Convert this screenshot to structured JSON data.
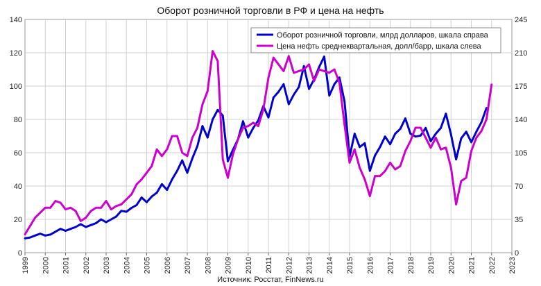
{
  "chart_data": {
    "type": "line",
    "title": "Оборот розничной торговли в РФ и цена на нефть",
    "source": "Источник: Росстат, FinNews.ru",
    "left_axis": {
      "min": 0,
      "max": 140,
      "ticks": [
        "0",
        "20",
        "40",
        "60",
        "80",
        "100",
        "120",
        "140"
      ]
    },
    "right_axis": {
      "min": 0,
      "max": 245,
      "ticks": [
        "0",
        "35",
        "70",
        "105",
        "140",
        "175",
        "210",
        "245"
      ]
    },
    "x_axis": {
      "min": 1999,
      "max": 2023,
      "ticks": [
        "1999",
        "2000",
        "2001",
        "2002",
        "2003",
        "2004",
        "2005",
        "2006",
        "2007",
        "2008",
        "2009",
        "2010",
        "2011",
        "2012",
        "2013",
        "2014",
        "2015",
        "2016",
        "2017",
        "2018",
        "2019",
        "2020",
        "2021",
        "2022",
        "2023"
      ]
    },
    "grid": true,
    "legend_position": "top-right",
    "series": [
      {
        "name": "Оборот розничной торговли, млрд долларов, шкала справа",
        "color": "#0000cc",
        "axis": "right",
        "points": [
          [
            1999.0,
            15
          ],
          [
            1999.25,
            16
          ],
          [
            1999.5,
            18
          ],
          [
            1999.75,
            20
          ],
          [
            2000.0,
            18
          ],
          [
            2000.25,
            19
          ],
          [
            2000.5,
            22
          ],
          [
            2000.75,
            25
          ],
          [
            2001.0,
            23
          ],
          [
            2001.25,
            25
          ],
          [
            2001.5,
            27
          ],
          [
            2001.75,
            30
          ],
          [
            2002.0,
            27
          ],
          [
            2002.25,
            29
          ],
          [
            2002.5,
            31
          ],
          [
            2002.75,
            35
          ],
          [
            2003.0,
            32
          ],
          [
            2003.25,
            35
          ],
          [
            2003.5,
            38
          ],
          [
            2003.75,
            44
          ],
          [
            2004.0,
            43
          ],
          [
            2004.25,
            47
          ],
          [
            2004.5,
            50
          ],
          [
            2004.75,
            58
          ],
          [
            2005.0,
            53
          ],
          [
            2005.25,
            59
          ],
          [
            2005.5,
            63
          ],
          [
            2005.75,
            72
          ],
          [
            2006.0,
            66
          ],
          [
            2006.25,
            77
          ],
          [
            2006.5,
            86
          ],
          [
            2006.75,
            97
          ],
          [
            2007.0,
            84
          ],
          [
            2007.25,
            99
          ],
          [
            2007.5,
            112
          ],
          [
            2007.75,
            133
          ],
          [
            2008.0,
            121
          ],
          [
            2008.25,
            140
          ],
          [
            2008.5,
            150
          ],
          [
            2008.75,
            144
          ],
          [
            2009.0,
            96
          ],
          [
            2009.25,
            108
          ],
          [
            2009.5,
            119
          ],
          [
            2009.75,
            138
          ],
          [
            2010.0,
            121
          ],
          [
            2010.25,
            131
          ],
          [
            2010.5,
            139
          ],
          [
            2010.75,
            154
          ],
          [
            2011.0,
            142
          ],
          [
            2011.25,
            163
          ],
          [
            2011.5,
            169
          ],
          [
            2011.75,
            177
          ],
          [
            2012.0,
            156
          ],
          [
            2012.25,
            166
          ],
          [
            2012.5,
            174
          ],
          [
            2012.75,
            196
          ],
          [
            2013.0,
            172
          ],
          [
            2013.25,
            182
          ],
          [
            2013.5,
            195
          ],
          [
            2013.75,
            206
          ],
          [
            2014.0,
            165
          ],
          [
            2014.25,
            177
          ],
          [
            2014.5,
            184
          ],
          [
            2014.75,
            159
          ],
          [
            2015.0,
            101
          ],
          [
            2015.25,
            125
          ],
          [
            2015.5,
            111
          ],
          [
            2015.75,
            115
          ],
          [
            2016.0,
            86
          ],
          [
            2016.25,
            102
          ],
          [
            2016.5,
            111
          ],
          [
            2016.75,
            122
          ],
          [
            2017.0,
            114
          ],
          [
            2017.25,
            125
          ],
          [
            2017.5,
            130
          ],
          [
            2017.75,
            141
          ],
          [
            2018.0,
            125
          ],
          [
            2018.25,
            122
          ],
          [
            2018.5,
            123
          ],
          [
            2018.75,
            131
          ],
          [
            2019.0,
            117
          ],
          [
            2019.25,
            125
          ],
          [
            2019.5,
            131
          ],
          [
            2019.75,
            146
          ],
          [
            2020.0,
            124
          ],
          [
            2020.25,
            98
          ],
          [
            2020.5,
            120
          ],
          [
            2020.75,
            127
          ],
          [
            2021.0,
            116
          ],
          [
            2021.25,
            127
          ],
          [
            2021.5,
            137
          ],
          [
            2021.75,
            152
          ]
        ]
      },
      {
        "name": "Цена нефть среднеквартальная, долл/барр, шкала слева",
        "color": "#cc00cc",
        "axis": "left",
        "points": [
          [
            1999.0,
            11
          ],
          [
            1999.25,
            16
          ],
          [
            1999.5,
            21
          ],
          [
            1999.75,
            24
          ],
          [
            2000.0,
            27
          ],
          [
            2000.25,
            27
          ],
          [
            2000.5,
            31
          ],
          [
            2000.75,
            30
          ],
          [
            2001.0,
            26
          ],
          [
            2001.25,
            27
          ],
          [
            2001.5,
            25
          ],
          [
            2001.75,
            19
          ],
          [
            2002.0,
            21
          ],
          [
            2002.25,
            25
          ],
          [
            2002.5,
            27
          ],
          [
            2002.75,
            27
          ],
          [
            2003.0,
            31
          ],
          [
            2003.25,
            26
          ],
          [
            2003.5,
            28
          ],
          [
            2003.75,
            29
          ],
          [
            2004.0,
            32
          ],
          [
            2004.25,
            35
          ],
          [
            2004.5,
            41
          ],
          [
            2004.75,
            44
          ],
          [
            2005.0,
            48
          ],
          [
            2005.25,
            52
          ],
          [
            2005.5,
            62
          ],
          [
            2005.75,
            58
          ],
          [
            2006.0,
            62
          ],
          [
            2006.25,
            70
          ],
          [
            2006.5,
            70
          ],
          [
            2006.75,
            60
          ],
          [
            2007.0,
            58
          ],
          [
            2007.25,
            69
          ],
          [
            2007.5,
            75
          ],
          [
            2007.75,
            89
          ],
          [
            2008.0,
            97
          ],
          [
            2008.25,
            121
          ],
          [
            2008.5,
            115
          ],
          [
            2008.75,
            56
          ],
          [
            2009.0,
            45
          ],
          [
            2009.25,
            59
          ],
          [
            2009.5,
            68
          ],
          [
            2009.75,
            75
          ],
          [
            2010.0,
            76
          ],
          [
            2010.25,
            78
          ],
          [
            2010.5,
            76
          ],
          [
            2010.75,
            86
          ],
          [
            2011.0,
            105
          ],
          [
            2011.25,
            117
          ],
          [
            2011.5,
            113
          ],
          [
            2011.75,
            109
          ],
          [
            2012.0,
            118
          ],
          [
            2012.25,
            108
          ],
          [
            2012.5,
            109
          ],
          [
            2012.75,
            110
          ],
          [
            2013.0,
            113
          ],
          [
            2013.25,
            103
          ],
          [
            2013.5,
            110
          ],
          [
            2013.75,
            109
          ],
          [
            2014.0,
            108
          ],
          [
            2014.25,
            110
          ],
          [
            2014.5,
            102
          ],
          [
            2014.75,
            77
          ],
          [
            2015.0,
            54
          ],
          [
            2015.25,
            62
          ],
          [
            2015.5,
            51
          ],
          [
            2015.75,
            44
          ],
          [
            2016.0,
            34
          ],
          [
            2016.25,
            46
          ],
          [
            2016.5,
            46
          ],
          [
            2016.75,
            49
          ],
          [
            2017.0,
            54
          ],
          [
            2017.25,
            50
          ],
          [
            2017.5,
            52
          ],
          [
            2017.75,
            61
          ],
          [
            2018.0,
            67
          ],
          [
            2018.25,
            75
          ],
          [
            2018.5,
            75
          ],
          [
            2018.75,
            69
          ],
          [
            2019.0,
            63
          ],
          [
            2019.25,
            69
          ],
          [
            2019.5,
            62
          ],
          [
            2019.75,
            63
          ],
          [
            2020.0,
            51
          ],
          [
            2020.25,
            29
          ],
          [
            2020.5,
            43
          ],
          [
            2020.75,
            45
          ],
          [
            2021.0,
            61
          ],
          [
            2021.25,
            69
          ],
          [
            2021.5,
            73
          ],
          [
            2021.75,
            80
          ],
          [
            2022.0,
            101
          ]
        ]
      }
    ]
  }
}
